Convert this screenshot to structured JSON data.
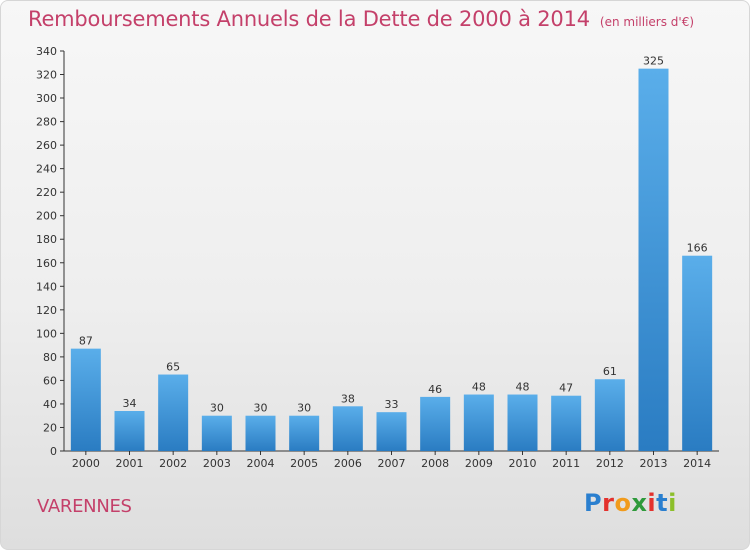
{
  "title": {
    "main": "Remboursements Annuels de la Dette de 2000 à 2014",
    "unit": "(en milliers d'€)"
  },
  "footer": {
    "place": "VARENNES",
    "logo_text": "Proxiti"
  },
  "colors": {
    "title": "#c4406a",
    "bar_top": "#5aaeea",
    "bar_bottom": "#2a7cc2"
  },
  "chart_data": {
    "type": "bar",
    "title": "Remboursements Annuels de la Dette de 2000 à 2014",
    "categories": [
      "2000",
      "2001",
      "2002",
      "2003",
      "2004",
      "2005",
      "2006",
      "2007",
      "2008",
      "2009",
      "2010",
      "2011",
      "2012",
      "2013",
      "2014"
    ],
    "values": [
      87,
      34,
      65,
      30,
      30,
      30,
      38,
      33,
      46,
      48,
      48,
      47,
      61,
      325,
      166
    ],
    "ylim": [
      0,
      340
    ],
    "yticks": [
      0,
      20,
      40,
      60,
      80,
      100,
      120,
      140,
      160,
      180,
      200,
      220,
      240,
      260,
      280,
      300,
      320,
      340
    ],
    "grid": false,
    "xlabel": "",
    "ylabel": ""
  }
}
